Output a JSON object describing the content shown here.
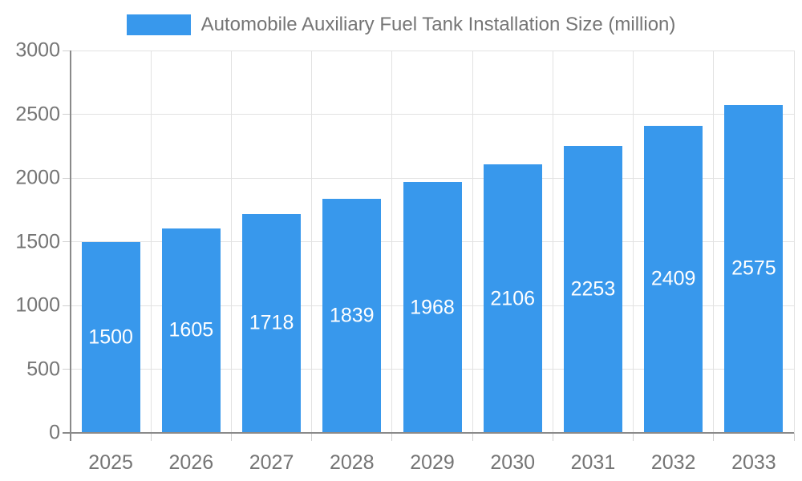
{
  "chart_data": {
    "type": "bar",
    "title": "Automobile Auxiliary Fuel Tank Installation Size (million)",
    "categories": [
      "2025",
      "2026",
      "2027",
      "2028",
      "2029",
      "2030",
      "2031",
      "2032",
      "2033"
    ],
    "values": [
      1500,
      1605,
      1718,
      1839,
      1968,
      2106,
      2253,
      2409,
      2575
    ],
    "xlabel": "",
    "ylabel": "",
    "ylim": [
      0,
      3000
    ],
    "yticks": [
      0,
      500,
      1000,
      1500,
      2000,
      2500,
      3000
    ],
    "grid": true,
    "legend_position": "top",
    "bar_label_position": "inside-middle",
    "colors": {
      "bar": "#3898EC",
      "bar_value_label": "#FFFFFF",
      "axis_text": "#757575",
      "legend_text": "#757575",
      "axis_line": "#8A8A8A",
      "gridline": "#E2E2E2",
      "tick": "#CFCFCF",
      "background": "#FFFFFF"
    }
  }
}
